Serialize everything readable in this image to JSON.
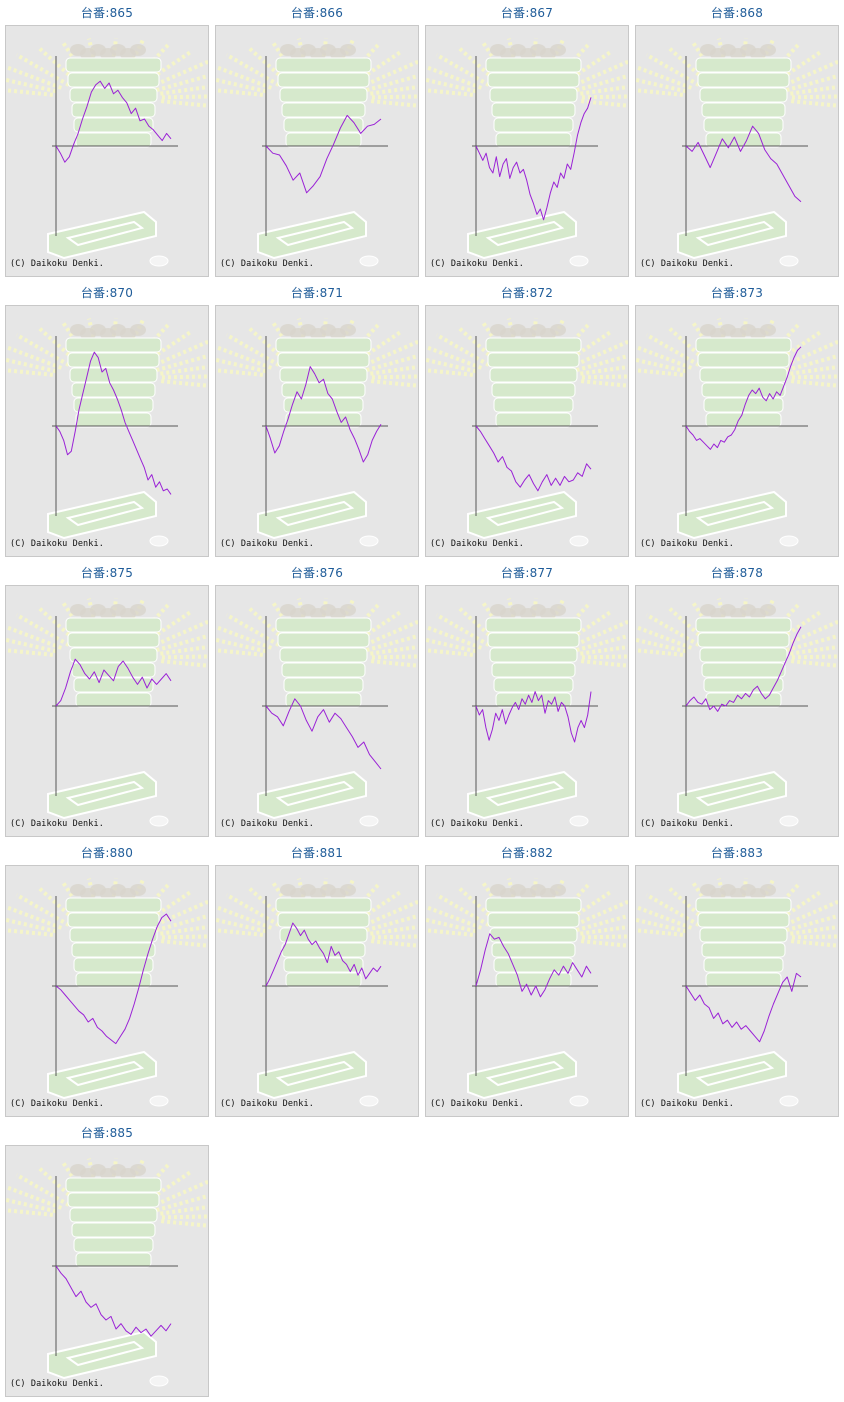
{
  "page": {
    "title_prefix": "台番:"
  },
  "colors": {
    "line": "#9a22d6",
    "axis": "#555555",
    "background": "#e6e6e6",
    "title": "#1f5c99"
  },
  "charts": [
    {
      "label": "台番:865",
      "copyright": "(C) Daikoku Denki.",
      "chart_data": {
        "type": "line",
        "values": [
          0,
          -8,
          -18,
          -12,
          2,
          14,
          30,
          44,
          60,
          68,
          72,
          64,
          70,
          58,
          62,
          54,
          48,
          36,
          42,
          28,
          30,
          22,
          18,
          12,
          6,
          14,
          8
        ]
      }
    },
    {
      "label": "台番:866",
      "copyright": "(C) Daikoku Denki.",
      "chart_data": {
        "type": "line",
        "values": [
          0,
          -8,
          -10,
          -22,
          -38,
          -30,
          -52,
          -44,
          -34,
          -14,
          2,
          20,
          34,
          26,
          14,
          22,
          24,
          30
        ]
      }
    },
    {
      "label": "台番:867",
      "copyright": "(C) Daikoku Denki.",
      "chart_data": {
        "type": "line",
        "values": [
          0,
          -8,
          -16,
          -8,
          -24,
          -30,
          -12,
          -34,
          -20,
          -14,
          -36,
          -24,
          -18,
          -30,
          -26,
          -38,
          -54,
          -64,
          -76,
          -70,
          -82,
          -68,
          -52,
          -40,
          -46,
          -30,
          -36,
          -20,
          -26,
          -8,
          12,
          26,
          36,
          42,
          54
        ]
      }
    },
    {
      "label": "台番:868",
      "copyright": "(C) Daikoku Denki.",
      "chart_data": {
        "type": "line",
        "values": [
          0,
          -6,
          4,
          -10,
          -24,
          -8,
          8,
          -2,
          10,
          -6,
          6,
          22,
          14,
          -4,
          -14,
          -20,
          -32,
          -44,
          -56,
          -62
        ]
      }
    },
    {
      "label": "台番:870",
      "copyright": "(C) Daikoku Denki.",
      "chart_data": {
        "type": "line",
        "values": [
          0,
          -6,
          -16,
          -32,
          -28,
          -6,
          18,
          36,
          54,
          72,
          82,
          76,
          60,
          64,
          48,
          40,
          30,
          18,
          4,
          -6,
          -16,
          -26,
          -36,
          -46,
          -60,
          -54,
          -68,
          -62,
          -72,
          -70,
          -76
        ]
      }
    },
    {
      "label": "台番:871",
      "copyright": "(C) Daikoku Denki.",
      "chart_data": {
        "type": "line",
        "values": [
          0,
          -14,
          -30,
          -22,
          -6,
          8,
          24,
          38,
          30,
          46,
          66,
          58,
          48,
          52,
          36,
          30,
          16,
          4,
          10,
          -4,
          -14,
          -26,
          -40,
          -32,
          -16,
          -6,
          2
        ]
      }
    },
    {
      "label": "台番:872",
      "copyright": "(C) Daikoku Denki.",
      "chart_data": {
        "type": "line",
        "values": [
          0,
          -6,
          -14,
          -22,
          -30,
          -40,
          -34,
          -46,
          -50,
          -62,
          -68,
          -60,
          -54,
          -64,
          -72,
          -62,
          -54,
          -66,
          -58,
          -66,
          -56,
          -62,
          -60,
          -52,
          -56,
          -42,
          -48
        ]
      }
    },
    {
      "label": "台番:873",
      "copyright": "(C) Daikoku Denki.",
      "chart_data": {
        "type": "line",
        "values": [
          0,
          -6,
          -10,
          -16,
          -14,
          -18,
          -22,
          -26,
          -20,
          -24,
          -16,
          -18,
          -12,
          -10,
          -4,
          6,
          12,
          24,
          34,
          40,
          36,
          42,
          32,
          28,
          36,
          30,
          38,
          34,
          44,
          54,
          66,
          76,
          84,
          88
        ]
      }
    },
    {
      "label": "台番:875",
      "copyright": "(C) Daikoku Denki.",
      "chart_data": {
        "type": "line",
        "values": [
          0,
          6,
          20,
          38,
          52,
          46,
          36,
          30,
          38,
          26,
          40,
          34,
          28,
          44,
          50,
          42,
          32,
          24,
          32,
          20,
          30,
          24,
          30,
          36,
          28
        ]
      }
    },
    {
      "label": "台番:876",
      "copyright": "(C) Daikoku Denki.",
      "chart_data": {
        "type": "line",
        "values": [
          0,
          -8,
          -12,
          -22,
          -6,
          8,
          0,
          -16,
          -28,
          -12,
          -4,
          -18,
          -8,
          -14,
          -24,
          -34,
          -46,
          -40,
          -54,
          -62,
          -70
        ]
      }
    },
    {
      "label": "台番:877",
      "copyright": "(C) Daikoku Denki.",
      "chart_data": {
        "type": "line",
        "values": [
          0,
          -10,
          -4,
          -24,
          -38,
          -26,
          -8,
          -16,
          -4,
          -20,
          -10,
          -2,
          4,
          -4,
          8,
          2,
          12,
          4,
          16,
          6,
          12,
          -8,
          6,
          2,
          10,
          -6,
          4,
          0,
          -12,
          -30,
          -40,
          -24,
          -16,
          -24,
          -10,
          16
        ]
      }
    },
    {
      "label": "台番:878",
      "copyright": "(C) Daikoku Denki.",
      "chart_data": {
        "type": "line",
        "values": [
          0,
          6,
          10,
          4,
          2,
          8,
          -4,
          0,
          -6,
          2,
          0,
          6,
          4,
          12,
          8,
          14,
          10,
          18,
          22,
          14,
          8,
          12,
          20,
          28,
          38,
          48,
          58,
          70,
          80,
          88
        ]
      }
    },
    {
      "label": "台番:880",
      "copyright": "(C) Daikoku Denki.",
      "chart_data": {
        "type": "line",
        "values": [
          0,
          -4,
          -10,
          -16,
          -22,
          -28,
          -32,
          -40,
          -36,
          -46,
          -50,
          -56,
          -60,
          -64,
          -56,
          -48,
          -36,
          -20,
          -2,
          18,
          36,
          52,
          66,
          76,
          80,
          72
        ]
      }
    },
    {
      "label": "台番:881",
      "copyright": "(C) Daikoku Denki.",
      "chart_data": {
        "type": "line",
        "values": [
          0,
          8,
          18,
          28,
          38,
          46,
          58,
          70,
          64,
          56,
          62,
          52,
          46,
          50,
          42,
          36,
          26,
          44,
          34,
          38,
          28,
          24,
          16,
          24,
          12,
          20,
          8,
          14,
          20,
          16,
          22
        ]
      }
    },
    {
      "label": "台番:882",
      "copyright": "(C) Daikoku Denki.",
      "chart_data": {
        "type": "line",
        "values": [
          0,
          18,
          40,
          58,
          52,
          54,
          44,
          36,
          24,
          12,
          -6,
          2,
          -10,
          0,
          -12,
          -4,
          8,
          18,
          12,
          22,
          14,
          26,
          18,
          10,
          22,
          14
        ]
      }
    },
    {
      "label": "台番:883",
      "copyright": "(C) Daikoku Denki.",
      "chart_data": {
        "type": "line",
        "values": [
          0,
          -8,
          -16,
          -10,
          -20,
          -24,
          -36,
          -30,
          -42,
          -38,
          -46,
          -40,
          -48,
          -44,
          -50,
          -56,
          -62,
          -50,
          -34,
          -20,
          -8,
          4,
          10,
          -6,
          14,
          10
        ]
      }
    },
    {
      "label": "台番:885",
      "copyright": "(C) Daikoku Denki.",
      "chart_data": {
        "type": "line",
        "values": [
          0,
          -8,
          -14,
          -24,
          -34,
          -28,
          -40,
          -46,
          -42,
          -54,
          -60,
          -56,
          -70,
          -64,
          -72,
          -76,
          -68,
          -74,
          -70,
          -78,
          -72,
          -66,
          -72,
          -64
        ]
      }
    }
  ]
}
